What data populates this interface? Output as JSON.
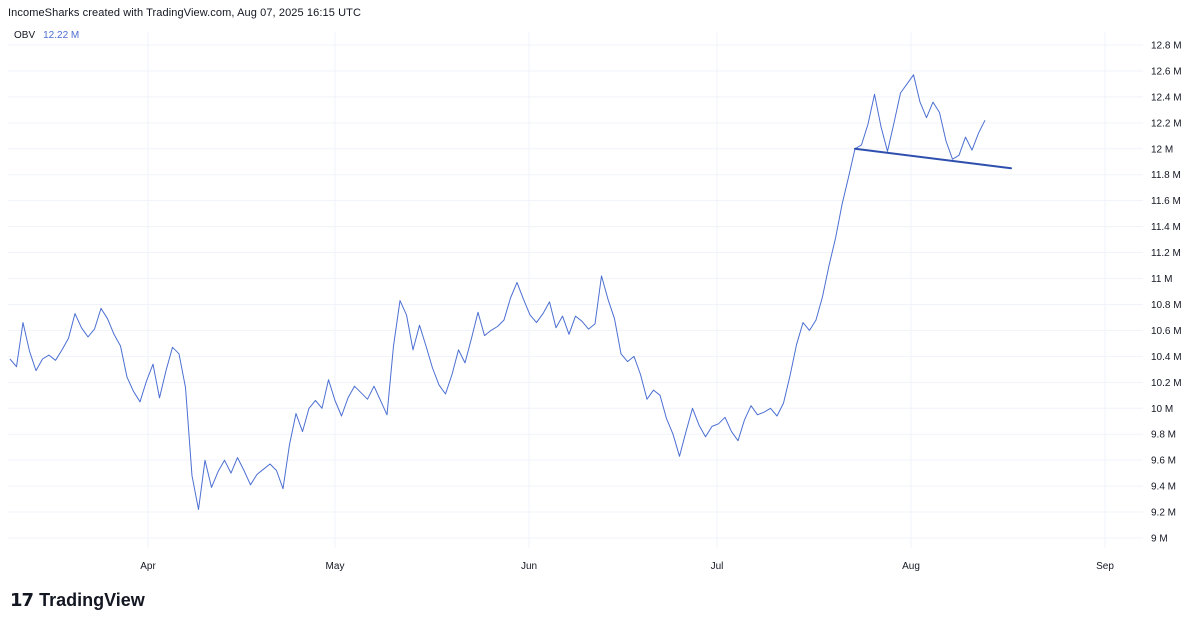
{
  "header": {
    "attribution": "IncomeSharks created with TradingView.com, Aug 07, 2025 16:15 UTC"
  },
  "legend": {
    "indicator": "OBV",
    "value": "12.22 M"
  },
  "brand": {
    "logo_mark": "17",
    "name": "TradingView"
  },
  "colors": {
    "series": "#4c6fd2",
    "trendline": "#2e4fae",
    "grid": "#f0f3fa"
  },
  "chart_data": {
    "type": "line",
    "title": "",
    "xlabel": "",
    "ylabel": "",
    "ylim": [
      8.9,
      12.9
    ],
    "y_ticks": [
      9.0,
      9.2,
      9.4,
      9.6,
      9.8,
      10.0,
      10.2,
      10.4,
      10.6,
      10.8,
      11.0,
      11.2,
      11.4,
      11.6,
      11.8,
      12.0,
      12.2,
      12.4,
      12.6,
      12.8
    ],
    "y_tick_labels": [
      "9 M",
      "9.2 M",
      "9.4 M",
      "9.6 M",
      "9.8 M",
      "10 M",
      "10.2 M",
      "10.4 M",
      "10.6 M",
      "10.8 M",
      "11 M",
      "11.2 M",
      "11.4 M",
      "11.6 M",
      "11.8 M",
      "12 M",
      "12.2 M",
      "12.4 M",
      "12.6 M",
      "12.8 M"
    ],
    "x_ticks": [
      "Apr",
      "May",
      "Jun",
      "Jul",
      "Aug",
      "Sep"
    ],
    "grid": true,
    "series": [
      {
        "values": [
          10.38,
          10.32,
          10.66,
          10.44,
          10.29,
          10.38,
          10.41,
          10.37,
          10.45,
          10.54,
          10.73,
          10.62,
          10.55,
          10.61,
          10.77,
          10.69,
          10.57,
          10.48,
          10.24,
          10.13,
          10.05,
          10.21,
          10.34,
          10.08,
          10.29,
          10.47,
          10.42,
          10.16,
          9.48,
          9.22,
          9.6,
          9.39,
          9.51,
          9.6,
          9.5,
          9.62,
          9.52,
          9.41,
          9.49,
          9.53,
          9.57,
          9.52,
          9.38,
          9.72,
          9.96,
          9.82,
          10.0,
          10.06,
          10.0,
          10.22,
          10.06,
          9.94,
          10.08,
          10.17,
          10.12,
          10.07,
          10.17,
          10.06,
          9.95,
          10.48,
          10.83,
          10.72,
          10.45,
          10.64,
          10.48,
          10.31,
          10.18,
          10.11,
          10.26,
          10.45,
          10.35,
          10.54,
          10.74,
          10.56,
          10.6,
          10.63,
          10.68,
          10.85,
          10.97,
          10.84,
          10.72,
          10.66,
          10.73,
          10.82,
          10.62,
          10.71,
          10.57,
          10.71,
          10.67,
          10.61,
          10.65,
          11.02,
          10.84,
          10.69,
          10.42,
          10.36,
          10.4,
          10.26,
          10.07,
          10.14,
          10.1,
          9.92,
          9.8,
          9.63,
          9.82,
          10.0,
          9.87,
          9.78,
          9.86,
          9.88,
          9.93,
          9.82,
          9.75,
          9.91,
          10.02,
          9.95,
          9.97,
          10.0,
          9.94,
          10.04,
          10.25,
          10.49,
          10.66,
          10.6,
          10.68,
          10.86,
          11.1,
          11.31,
          11.57,
          11.78,
          12.0,
          12.03,
          12.19,
          12.42,
          12.17,
          11.98,
          12.2,
          12.43,
          12.5,
          12.57,
          12.36,
          12.24,
          12.36,
          12.28,
          12.06,
          11.92,
          11.95,
          12.09,
          11.99,
          12.12,
          12.22
        ]
      }
    ],
    "annotations": [
      {
        "type": "trendline",
        "from": [
          130,
          12.0
        ],
        "to": [
          154,
          11.85
        ]
      }
    ]
  }
}
